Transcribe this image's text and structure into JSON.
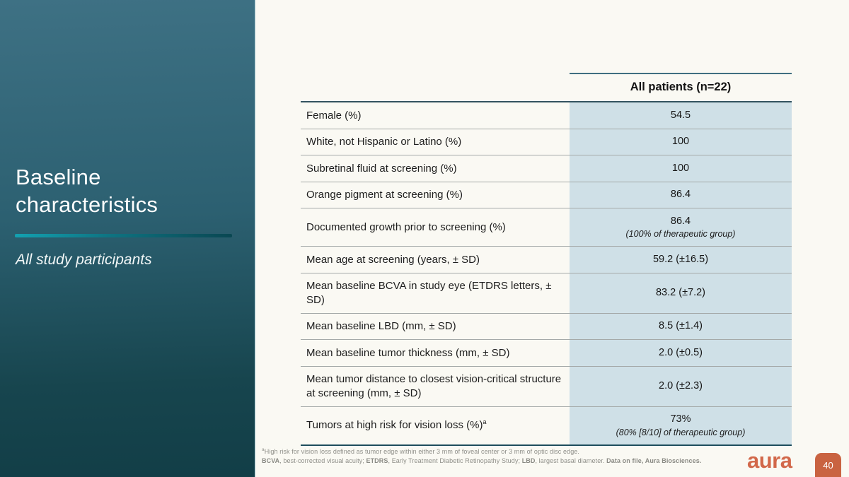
{
  "slide": {
    "title": "Baseline characteristics",
    "subtitle": "All study participants",
    "logo_text": "aura",
    "page_number": "40"
  },
  "colors": {
    "sidebar_top": "#3e7184",
    "sidebar_bottom": "#123e47",
    "accent_teal": "#13a1b1",
    "value_column_bg": "#cfe0e7",
    "table_header_line": "#3f6e80",
    "table_bottom_border": "#1e4d5c",
    "logo_orange": "#d2684a",
    "page_badge_orange": "#c96341"
  },
  "table": {
    "column_header": "All patients (n=22)",
    "rows": [
      {
        "label": "Female (%)",
        "value": "54.5"
      },
      {
        "label": "White, not Hispanic or Latino (%)",
        "value": "100"
      },
      {
        "label": "Subretinal fluid at screening (%)",
        "value": "100"
      },
      {
        "label": "Orange pigment at screening (%)",
        "value": "86.4"
      },
      {
        "label": "Documented growth prior to screening (%)",
        "value": "86.4",
        "value_note": "(100% of therapeutic group)"
      },
      {
        "label": "Mean age at screening (years, ± SD)",
        "value": "59.2 (±16.5)"
      },
      {
        "label": "Mean baseline BCVA in study eye (ETDRS letters, ± SD)",
        "value": "83.2 (±7.2)"
      },
      {
        "label": "Mean baseline LBD (mm, ± SD)",
        "value": "8.5 (±1.4)"
      },
      {
        "label": "Mean baseline tumor thickness (mm, ± SD)",
        "value": "2.0 (±0.5)"
      },
      {
        "label": "Mean tumor distance to closest vision-critical structure at screening (mm, ± SD)",
        "value": "2.0 (±2.3)"
      },
      {
        "label": "Tumors at high risk for vision loss (%)",
        "label_sup": "a",
        "value": "73%",
        "value_note": "(80% [8/10] of therapeutic group)"
      }
    ]
  },
  "footnotes": {
    "line1_sup": "a",
    "line1": "High risk for vision loss defined as tumor edge within either 3 mm of foveal center or 3 mm of optic disc edge.",
    "line2_segments": [
      {
        "text": "BCVA",
        "bold": true
      },
      {
        "text": ", best-corrected visual acuity; ",
        "bold": false
      },
      {
        "text": "ETDRS",
        "bold": true
      },
      {
        "text": ", Early Treatment Diabetic Retinopathy Study; ",
        "bold": false
      },
      {
        "text": "LBD",
        "bold": true
      },
      {
        "text": ", largest basal diameter. ",
        "bold": false
      },
      {
        "text": "Data on file, Aura Biosciences.",
        "bold": true
      }
    ]
  }
}
